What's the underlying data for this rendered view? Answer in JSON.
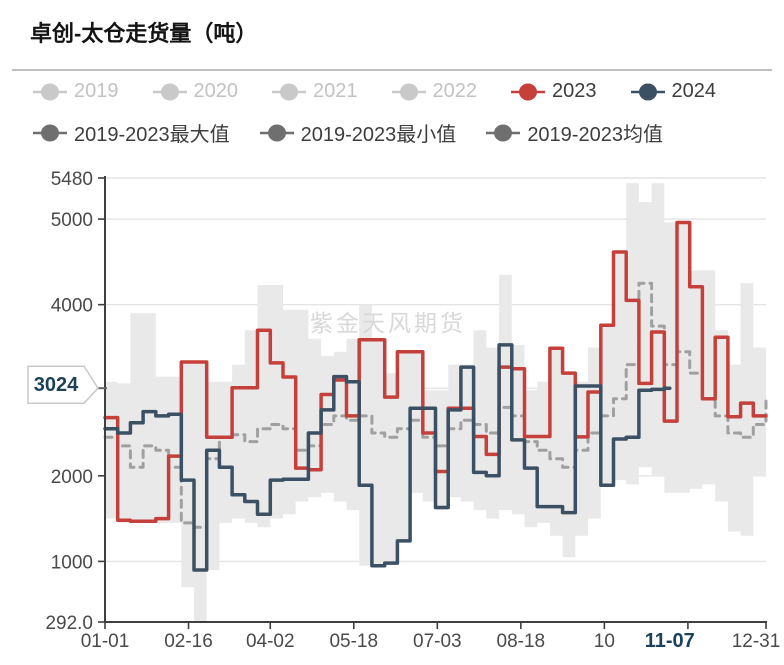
{
  "title": "卓创-太仓走货量（吨）",
  "watermark": "紫金天风期货",
  "legend": {
    "row1": [
      {
        "label": "2019",
        "color": "#c9c9c9",
        "text_color": "#c2c2c2"
      },
      {
        "label": "2020",
        "color": "#c9c9c9",
        "text_color": "#c2c2c2"
      },
      {
        "label": "2021",
        "color": "#c9c9c9",
        "text_color": "#c2c2c2"
      },
      {
        "label": "2022",
        "color": "#c9c9c9",
        "text_color": "#c2c2c2"
      },
      {
        "label": "2023",
        "color": "#c5403a",
        "text_color": "#3d3d3d"
      },
      {
        "label": "2024",
        "color": "#3c5064",
        "text_color": "#3d3d3d"
      }
    ],
    "row2": [
      {
        "label": "2019-2023最大值",
        "color": "#6f6f6f",
        "text_color": "#3d3d3d"
      },
      {
        "label": "2019-2023最小值",
        "color": "#6f6f6f",
        "text_color": "#3d3d3d"
      },
      {
        "label": "2019-2023均值",
        "color": "#6f6f6f",
        "text_color": "#3d3d3d"
      }
    ]
  },
  "callout": {
    "value_label": "3024",
    "date_label": "11-07",
    "text_color": "#1b4259",
    "value": 3024,
    "day": 311
  },
  "chart_data": {
    "type": "line",
    "title": "卓创-太仓走货量（吨）",
    "x_unit": "day_of_year",
    "x_range": [
      0,
      364
    ],
    "ylim": [
      292.0,
      5480
    ],
    "grid": true,
    "legend_position": "top",
    "colors": {
      "band_fill": "#e9e9e9",
      "mean_line": "#a0a0a0",
      "line_2023": "#c5403a",
      "line_2024": "#3c5064",
      "grid_line": "#e4e4e4",
      "axis_line": "#3f3f3f",
      "tick_text": "#4a4a4a",
      "watermark": "#d8d8d8",
      "callout_text": "#1b4259",
      "callout_border": "#c8c8c8"
    },
    "y_ticks": [
      {
        "v": 5480,
        "label": "5480"
      },
      {
        "v": 5000,
        "label": "5000"
      },
      {
        "v": 4000,
        "label": "4000"
      },
      {
        "v": 2000,
        "label": "2000"
      },
      {
        "v": 1000,
        "label": "1000"
      },
      {
        "v": 292,
        "label": "292.0"
      }
    ],
    "gridline_values": [
      5480,
      5000,
      4000,
      3024,
      2000,
      1000
    ],
    "x_ticks": [
      {
        "d": 0,
        "label": "01-01"
      },
      {
        "d": 46,
        "label": "02-16"
      },
      {
        "d": 91,
        "label": "04-02"
      },
      {
        "d": 137,
        "label": "05-18"
      },
      {
        "d": 183,
        "label": "07-03"
      },
      {
        "d": 229,
        "label": "08-18"
      },
      {
        "d": 275,
        "label": "10"
      },
      {
        "d": 321,
        "label": ""
      },
      {
        "d": 364,
        "label": "12-31"
      }
    ],
    "current_point": {
      "series": "2024",
      "day": 311,
      "value": 3024,
      "x_label": "11-07",
      "y_label": "3024"
    },
    "band": {
      "name": "2019-2023最大值/最小值",
      "week_step": 7,
      "max": [
        3100,
        3080,
        3900,
        3900,
        3160,
        3160,
        3330,
        3330,
        3100,
        3100,
        3300,
        3700,
        4230,
        4230,
        3940,
        3940,
        3600,
        3400,
        3450,
        3600,
        4000,
        3600,
        3200,
        3450,
        3450,
        3000,
        3000,
        3300,
        3300,
        3700,
        3500,
        4350,
        3530,
        3000,
        3100,
        3490,
        3200,
        3100,
        3500,
        3760,
        4615,
        5420,
        5200,
        5420,
        4960,
        4960,
        4400,
        4400,
        3700,
        3300,
        4250,
        3500,
        3300
      ],
      "min": [
        1500,
        1450,
        1450,
        1470,
        1450,
        1450,
        700,
        292,
        900,
        1450,
        1500,
        1450,
        1400,
        1500,
        1550,
        1700,
        1750,
        1800,
        1700,
        1600,
        950,
        950,
        980,
        1240,
        1800,
        1700,
        1600,
        1750,
        1700,
        1600,
        1500,
        1600,
        1550,
        1400,
        1450,
        1300,
        1050,
        1300,
        1500,
        1900,
        1950,
        1900,
        2100,
        2000,
        1800,
        1800,
        1850,
        1900,
        1700,
        1350,
        1300,
        2000,
        2050
      ]
    },
    "series": [
      {
        "name": "2019-2023均值",
        "style": "dashed",
        "color": "#a0a0a0",
        "week_step": 7,
        "values": [
          2450,
          2350,
          2100,
          2350,
          2300,
          2100,
          1450,
          1400,
          2200,
          2450,
          2480,
          2400,
          2550,
          2600,
          2550,
          2300,
          2350,
          2600,
          2700,
          2650,
          2700,
          2500,
          2450,
          2550,
          2650,
          2450,
          2350,
          2550,
          2650,
          2600,
          2500,
          2800,
          2700,
          2400,
          2300,
          2200,
          2100,
          2300,
          2500,
          2700,
          2900,
          3300,
          4250,
          3750,
          3300,
          3450,
          3200,
          2900,
          2700,
          2500,
          2450,
          2600,
          2880
        ]
      },
      {
        "name": "2023",
        "style": "solid",
        "color": "#c5403a",
        "week_step": 7,
        "values": [
          2680,
          1480,
          1470,
          1470,
          1500,
          2230,
          3330,
          3330,
          2450,
          2450,
          3030,
          3030,
          3700,
          3320,
          3155,
          2090,
          2070,
          2950,
          3120,
          2700,
          3590,
          3590,
          2920,
          3450,
          3450,
          2500,
          2050,
          2790,
          2790,
          2460,
          2250,
          3270,
          3250,
          2460,
          2460,
          3490,
          3200,
          2455,
          2980,
          3760,
          4615,
          4050,
          3080,
          3680,
          2640,
          4960,
          4210,
          2900,
          3620,
          2690,
          2850,
          2700,
          2700
        ]
      },
      {
        "name": "2024",
        "style": "solid",
        "color": "#3c5064",
        "week_step": 7,
        "end_day": 311,
        "values": [
          2550,
          2500,
          2620,
          2750,
          2700,
          2720,
          1950,
          900,
          2300,
          2100,
          1780,
          1700,
          1550,
          1950,
          1960,
          1960,
          2500,
          2770,
          3160,
          3100,
          1890,
          950,
          980,
          1240,
          2790,
          2790,
          1630,
          2770,
          3270,
          2040,
          2000,
          3530,
          2420,
          2090,
          1640,
          1640,
          1570,
          3050,
          3050,
          1890,
          2430,
          2450,
          3000,
          3010,
          3024,
          3024
        ]
      }
    ]
  }
}
